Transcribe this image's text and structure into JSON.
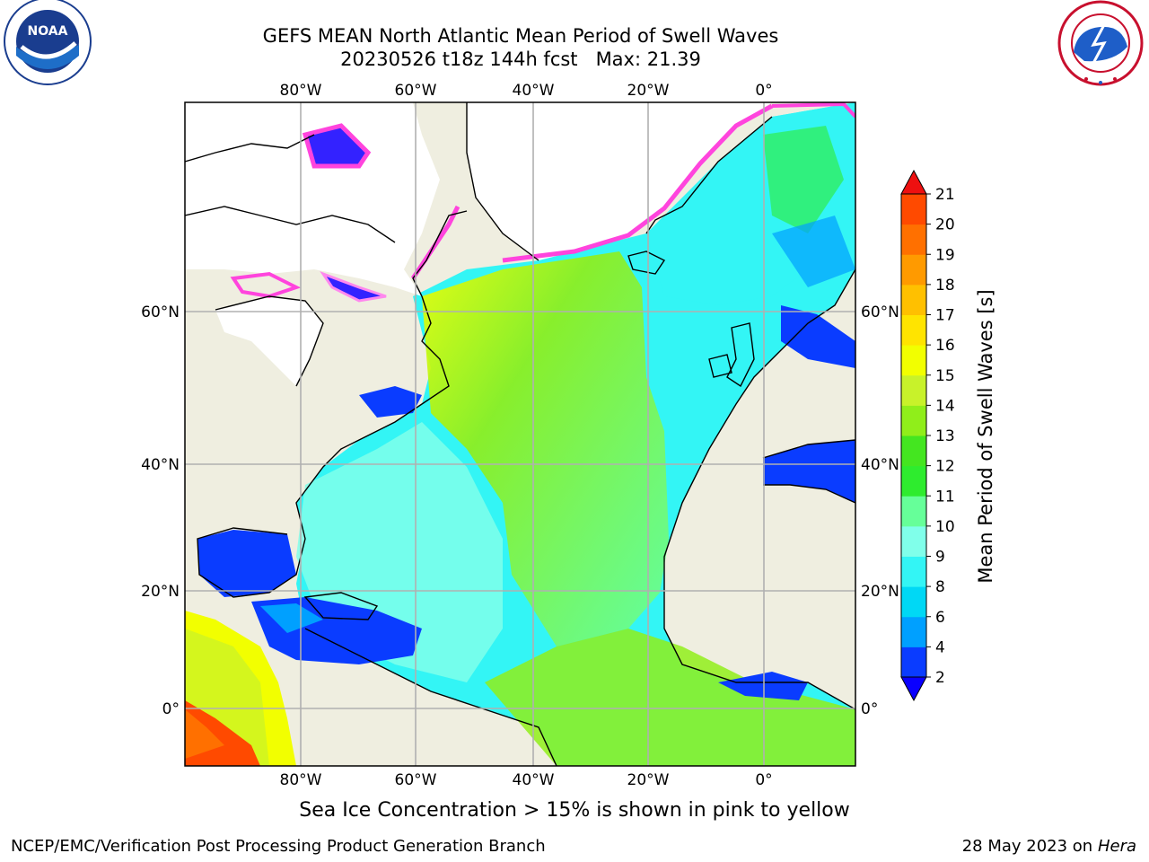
{
  "header": {
    "title_line1": "GEFS MEAN North Atlantic Mean Period of Swell Waves",
    "title_line2": "20230526 t18z 144h fcst   Max: 21.39"
  },
  "logos": {
    "left": {
      "name": "noaa-logo",
      "text": "NOAA",
      "ring_text": "NATIONAL OCEANIC AND ATMOSPHERIC ADMINISTRATION · U.S. DEPARTMENT OF COMMERCE"
    },
    "right": {
      "name": "nws-logo",
      "ring_text": "NATIONAL WEATHER SERVICE"
    }
  },
  "map": {
    "longitude_labels": [
      "80°W",
      "60°W",
      "40°W",
      "20°W",
      "0°"
    ],
    "latitude_labels": [
      "60°N",
      "40°N",
      "20°N",
      "0°"
    ],
    "caption": "Sea Ice Concentration > 15% is shown in pink to yellow"
  },
  "colorbar": {
    "label": "Mean Period of Swell Waves [s]",
    "ticks": [
      "2",
      "4",
      "6",
      "8",
      "9",
      "10",
      "11",
      "12",
      "13",
      "14",
      "15",
      "16",
      "17",
      "18",
      "19",
      "20",
      "21"
    ],
    "colors": [
      "#0a3cff",
      "#00a0ff",
      "#00d8f5",
      "#33f5f5",
      "#80ffea",
      "#66ff99",
      "#2eec2e",
      "#44e620",
      "#90ee1a",
      "#c8f22a",
      "#f2ff00",
      "#ffe400",
      "#ffc000",
      "#ff9a00",
      "#ff7000",
      "#ff4a00",
      "#ff2400"
    ],
    "under_color": "#0a00ff",
    "over_color": "#ee1010"
  },
  "footer": {
    "left": "NCEP/EMC/Verification Post Processing Product Generation Branch",
    "right_date": "28 May 2023 on",
    "right_host": "Hera"
  }
}
